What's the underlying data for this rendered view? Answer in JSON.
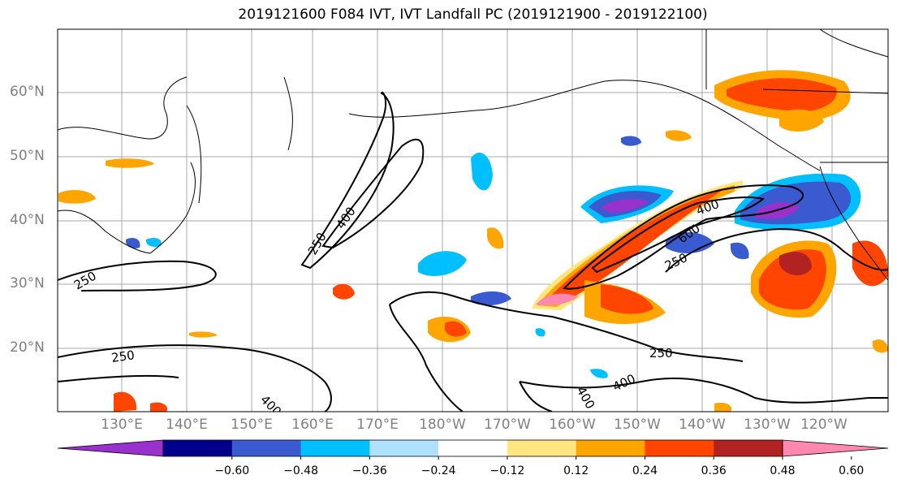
{
  "title": "2019121600 F084 IVT, IVT Landfall PC (2019121900 - 2019122100)",
  "lat_labels": [
    "60°N",
    "50°N",
    "40°N",
    "30°N",
    "20°N"
  ],
  "lon_labels": [
    "130°E",
    "140°E",
    "150°E",
    "160°E",
    "170°E",
    "180°W",
    "170°W",
    "160°W",
    "150°W",
    "140°W",
    "130°W",
    "120°W"
  ],
  "contour_labels": {
    "c250_w": "250",
    "c250_mid": "250",
    "c400_mid": "400",
    "c250_e": "250",
    "c400_e": "400",
    "c600_e": "600",
    "c250_s": "250",
    "c250_se": "250",
    "c400_se": "400",
    "c400_s": "400",
    "c400_s2": "400"
  },
  "colorbar": {
    "ticks": [
      "−0.60",
      "−0.48",
      "−0.36",
      "−0.24",
      "−0.12",
      "0.12",
      "0.24",
      "0.36",
      "0.48",
      "0.60"
    ],
    "colors": [
      "#9932cc",
      "#00008b",
      "#3a5bd0",
      "#00bfff",
      "#b0e2ff",
      "#ffffff",
      "#ffe680",
      "#ffa500",
      "#ff4500",
      "#b22222",
      "#ff88b0"
    ]
  }
}
